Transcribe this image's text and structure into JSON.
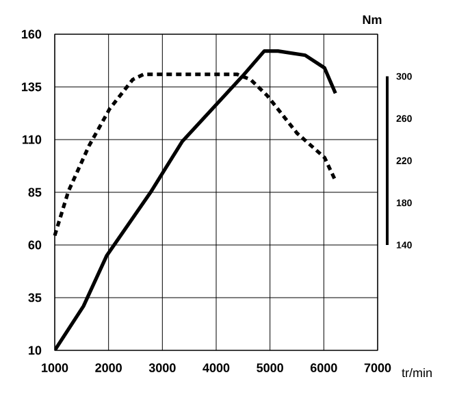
{
  "chart_data": {
    "type": "line",
    "xlabel": "tr/min",
    "y2label": "Nm",
    "x": [
      1000,
      1534,
      1967,
      2781,
      3366,
      4486,
      4893,
      5148,
      5656,
      6013,
      6216
    ],
    "series": [
      {
        "color": "#000000",
        "line_style": "solid",
        "values": [
          10,
          31,
          55,
          85,
          109,
          140,
          152,
          152,
          150,
          144,
          132
        ]
      },
      {
        "color": "#000000",
        "line_style": "dashed",
        "axis": "y2",
        "x": [
          1000,
          1254,
          1636,
          2018,
          2450,
          2654,
          4384,
          4639,
          4944,
          5504,
          6013,
          6216
        ],
        "values": [
          149,
          191,
          234,
          269,
          297,
          302,
          302,
          297,
          282,
          246,
          223,
          201
        ]
      }
    ],
    "xlim": [
      1000,
      7000
    ],
    "xticks": [
      1000,
      2000,
      3000,
      4000,
      5000,
      6000,
      7000
    ],
    "ylim": [
      10,
      160
    ],
    "yticks": [
      10,
      35,
      60,
      85,
      110,
      135,
      160
    ],
    "y2lim": [
      40,
      340
    ],
    "y2ticks": [
      140,
      180,
      220,
      260,
      300
    ],
    "grid": true,
    "marker": "none"
  }
}
